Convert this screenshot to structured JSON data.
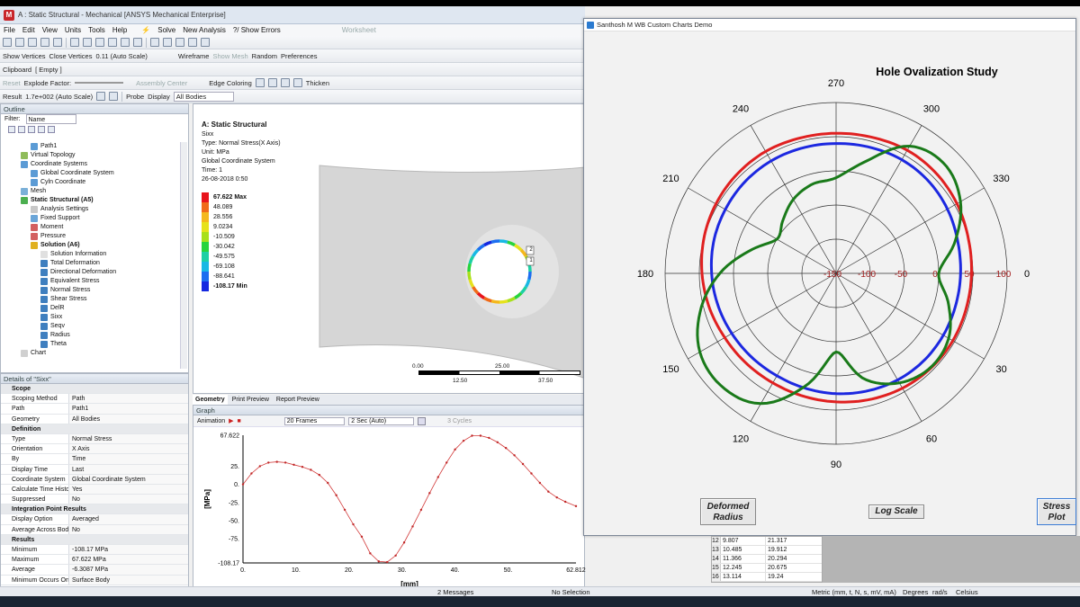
{
  "window": {
    "title": "A : Static Structural - Mechanical [ANSYS Mechanical Enterprise]",
    "app_icon": "M"
  },
  "menu": [
    "File",
    "Edit",
    "View",
    "Units",
    "Tools",
    "Help"
  ],
  "toolbar1": {
    "solve": "Solve",
    "new_analysis": "New Analysis",
    "show_errors": "?/ Show Errors",
    "worksheet": "Worksheet"
  },
  "toolbar2": {
    "show_vertices": "Show Vertices",
    "close_vertices": "Close Vertices",
    "auto_scale": "0.11 (Auto Scale)",
    "wireframe": "Wireframe",
    "show_mesh": "Show Mesh",
    "random": "Random",
    "preferences": "Preferences"
  },
  "toolbar3": {
    "clipboard": "Clipboard",
    "empty": "[ Empty ]"
  },
  "toolbar4": {
    "reset": "Reset",
    "explode_factor": "Explode Factor:",
    "assembly_center": "Assembly Center",
    "edge_coloring": "Edge Coloring",
    "thicken": "Thicken"
  },
  "toolbar5": {
    "result": "Result",
    "result_value": "1.7e+002 (Auto Scale)",
    "probe": "Probe",
    "display": "Display",
    "all_bodies": "All Bodies"
  },
  "outline": {
    "header": "Outline",
    "filter_label": "Filter:",
    "filter_value": "Name",
    "items": [
      {
        "label": "Path1",
        "indent": 3,
        "color": "#5b9bd5"
      },
      {
        "label": "Virtual Topology",
        "indent": 2,
        "color": "#8fbc5a"
      },
      {
        "label": "Coordinate Systems",
        "indent": 2,
        "color": "#5b9bd5"
      },
      {
        "label": "Global Coordinate System",
        "indent": 3,
        "color": "#5b9bd5"
      },
      {
        "label": "Cyln Coordinate",
        "indent": 3,
        "color": "#5b9bd5"
      },
      {
        "label": "Mesh",
        "indent": 2,
        "color": "#7bb0d8"
      },
      {
        "label": "Static Structural (A5)",
        "indent": 2,
        "color": "#4caf50",
        "bold": true
      },
      {
        "label": "Analysis Settings",
        "indent": 3,
        "color": "#c8c8c8"
      },
      {
        "label": "Fixed Support",
        "indent": 3,
        "color": "#6aa5d8"
      },
      {
        "label": "Moment",
        "indent": 3,
        "color": "#d35f5f"
      },
      {
        "label": "Pressure",
        "indent": 3,
        "color": "#d35f5f"
      },
      {
        "label": "Solution (A6)",
        "indent": 3,
        "color": "#e0b020",
        "bold": true
      },
      {
        "label": "Solution Information",
        "indent": 4,
        "color": "#e0e0e0"
      },
      {
        "label": "Total Deformation",
        "indent": 4,
        "color": "#3f7fbf"
      },
      {
        "label": "Directional Deformation",
        "indent": 4,
        "color": "#3f7fbf"
      },
      {
        "label": "Equivalent Stress",
        "indent": 4,
        "color": "#3f7fbf"
      },
      {
        "label": "Normal Stress",
        "indent": 4,
        "color": "#3f7fbf"
      },
      {
        "label": "Shear Stress",
        "indent": 4,
        "color": "#3f7fbf"
      },
      {
        "label": "DelR",
        "indent": 4,
        "color": "#3f7fbf"
      },
      {
        "label": "Sixx",
        "indent": 4,
        "color": "#3f7fbf"
      },
      {
        "label": "Seqv",
        "indent": 4,
        "color": "#3f7fbf"
      },
      {
        "label": "Radius",
        "indent": 4,
        "color": "#3f7fbf"
      },
      {
        "label": "Theta",
        "indent": 4,
        "color": "#3f7fbf"
      },
      {
        "label": "Chart",
        "indent": 2,
        "color": "#d0d0d0"
      }
    ]
  },
  "details": {
    "header": "Details of \"Sixx\"",
    "rows": [
      {
        "group": "Scope"
      },
      {
        "k": "Scoping Method",
        "v": "Path"
      },
      {
        "k": "Path",
        "v": "Path1"
      },
      {
        "k": "Geometry",
        "v": "All Bodies"
      },
      {
        "group": "Definition"
      },
      {
        "k": "Type",
        "v": "Normal Stress"
      },
      {
        "k": "Orientation",
        "v": "X Axis"
      },
      {
        "k": "By",
        "v": "Time"
      },
      {
        "k": "Display Time",
        "v": "Last"
      },
      {
        "k": "Coordinate System",
        "v": "Global Coordinate System"
      },
      {
        "k": "Calculate Time History",
        "v": "Yes"
      },
      {
        "k": "Suppressed",
        "v": "No"
      },
      {
        "group": "Integration Point Results"
      },
      {
        "k": "Display Option",
        "v": "Averaged"
      },
      {
        "k": "Average Across Bodies",
        "v": "No"
      },
      {
        "group": "Results"
      },
      {
        "k": "Minimum",
        "v": "-108.17 MPa"
      },
      {
        "k": "Maximum",
        "v": "67.622 MPa"
      },
      {
        "k": "Average",
        "v": "-6.3087 MPa"
      },
      {
        "k": "Minimum Occurs On",
        "v": "Surface Body"
      }
    ]
  },
  "viewport": {
    "title": "A: Static Structural",
    "lines": [
      "Sixx",
      "Type: Normal Stress(X Axis)",
      "Unit: MPa",
      "Global Coordinate System",
      "Time: 1",
      "26-08-2018 0:50"
    ],
    "legend": [
      {
        "label": "67.622 Max",
        "color": "#e8141c",
        "bold": true
      },
      {
        "label": "48.089",
        "color": "#f06a18"
      },
      {
        "label": "28.556",
        "color": "#f4b81c"
      },
      {
        "label": "9.0234",
        "color": "#e6e21c"
      },
      {
        "label": "-10.509",
        "color": "#a8e01c"
      },
      {
        "label": "-30.042",
        "color": "#28d43c"
      },
      {
        "label": "-49.575",
        "color": "#1cd0a4"
      },
      {
        "label": "-69.108",
        "color": "#18b8e4"
      },
      {
        "label": "-88.641",
        "color": "#1c6ef0"
      },
      {
        "label": "-108.17 Min",
        "color": "#1428e0",
        "bold": true
      }
    ],
    "scale_top": [
      "0.00",
      "25.00"
    ],
    "scale_bottom": [
      "12.50",
      "37.50"
    ],
    "point_labels": [
      "2",
      "1"
    ]
  },
  "view_tabs": [
    "Geometry",
    "Print Preview",
    "Report Preview"
  ],
  "graph": {
    "header": "Graph",
    "animation": "Animation",
    "frames": "20 Frames",
    "duration": "2 Sec (Auto)",
    "cycles": "3 Cycles",
    "ylabel": "[MPa]",
    "xlabel": "[mm]",
    "yticks": [
      "67.622",
      "25.",
      "0.",
      "-25.",
      "-50.",
      "-75.",
      "-108.17"
    ],
    "xticks": [
      "0.",
      "10.",
      "20.",
      "30.",
      "40.",
      "50.",
      "62.812"
    ]
  },
  "chart_window": {
    "title": "Santhosh M WB Custom Charts Demo",
    "buttons": {
      "deformed": "Deformed\nRadius",
      "log": "Log Scale",
      "stress": "Stress\nPlot"
    }
  },
  "chart_data": [
    {
      "type": "line",
      "title": "",
      "xlabel": "[mm]",
      "ylabel": "[MPa]",
      "xlim": [
        0,
        62.812
      ],
      "ylim": [
        -108.17,
        67.622
      ],
      "series": [
        {
          "x": [
            0,
            1.6,
            3.2,
            4.8,
            6.4,
            8.0,
            9.6,
            11.2,
            12.8,
            14.4,
            16.0,
            17.6,
            19.2,
            20.8,
            22.4,
            24.0,
            25.6,
            27.2,
            28.8,
            30.4,
            32.0,
            33.6,
            35.2,
            36.8,
            38.4,
            40.0,
            41.6,
            43.2,
            44.8,
            46.4,
            48.0,
            49.6,
            51.2,
            52.8,
            54.4,
            56.0,
            57.6,
            59.2,
            60.8,
            62.812
          ],
          "y": [
            0,
            15,
            25,
            30,
            31,
            30,
            27,
            24,
            20,
            13,
            2,
            -15,
            -35,
            -55,
            -72,
            -95,
            -106,
            -107,
            -98,
            -80,
            -58,
            -35,
            -12,
            10,
            30,
            48,
            60,
            67,
            67,
            64,
            58,
            50,
            40,
            28,
            15,
            2,
            -10,
            -18,
            -24,
            -30
          ]
        }
      ]
    },
    {
      "type": "polar",
      "title": "Hole Ovalization Study",
      "angle_ticks": [
        "270",
        "300",
        "330",
        "0",
        "30",
        "60",
        "90",
        "120",
        "150",
        "180",
        "210",
        "240"
      ],
      "radial_ticks": [
        "-150",
        "-100",
        "-50",
        "0",
        "50",
        "100"
      ],
      "radial_range": [
        -150,
        100
      ],
      "series": [
        {
          "color": "#e02020",
          "r": [
            55,
            56,
            58,
            57,
            54,
            50,
            48,
            47,
            47,
            46,
            44,
            41,
            38,
            36,
            35,
            36,
            38,
            42,
            46,
            50,
            53,
            55,
            56,
            55
          ]
        },
        {
          "color": "#1c28e0",
          "r": [
            40,
            41,
            42,
            41,
            38,
            34,
            32,
            31,
            31,
            31,
            30,
            28,
            26,
            24,
            23,
            24,
            26,
            29,
            32,
            35,
            37,
            39,
            40,
            40
          ]
        },
        {
          "color": "#1a7a1a",
          "r": [
            -10,
            20,
            65,
            75,
            60,
            30,
            0,
            20,
            40,
            45,
            35,
            10,
            -35,
            20,
            70,
            85,
            80,
            55,
            20,
            -20,
            -50,
            -40,
            -25,
            -15
          ]
        }
      ]
    }
  ],
  "bottom_table": [
    {
      "n": "12",
      "a": "9.807",
      "b": "21.317"
    },
    {
      "n": "13",
      "a": "10.485",
      "b": "19.912"
    },
    {
      "n": "14",
      "a": "11.366",
      "b": "20.294"
    },
    {
      "n": "15",
      "a": "12.245",
      "b": "20.675"
    },
    {
      "n": "16",
      "a": "13.114",
      "b": "19.24"
    }
  ],
  "status": {
    "messages": "2 Messages",
    "selection": "No Selection",
    "units": "Metric (mm, t, N, s, mV, mA)",
    "degrees": "Degrees",
    "rads": "rad/s",
    "temp": "Celsius"
  }
}
